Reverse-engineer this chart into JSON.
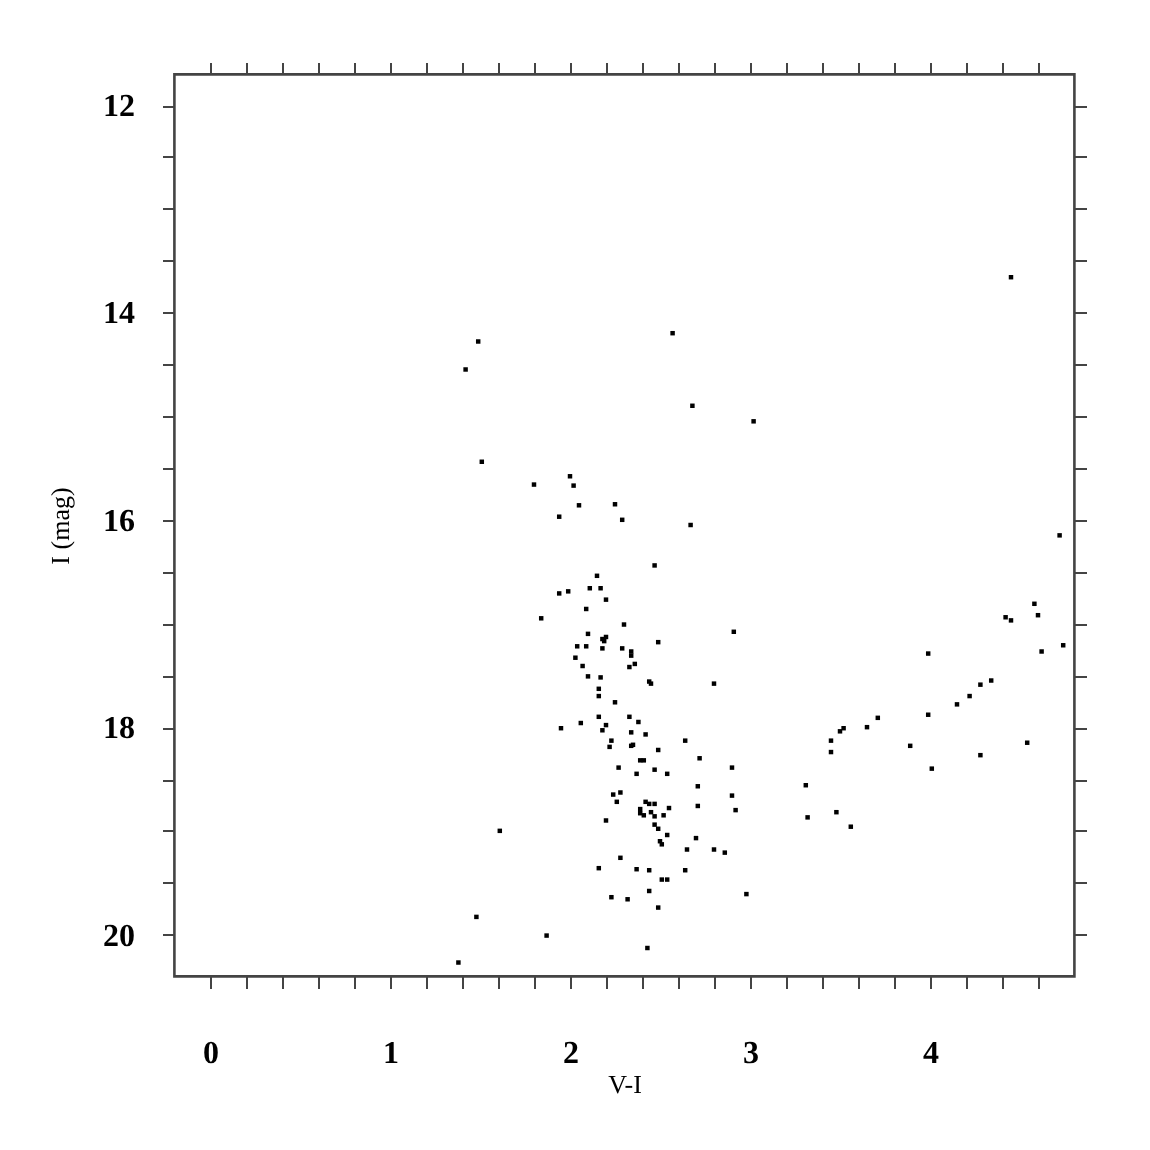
{
  "chart_data": {
    "type": "scatter",
    "xlabel": "V-I",
    "ylabel": "I (mag)",
    "marker": "square",
    "grid": false,
    "xlim": [
      -0.2,
      4.8
    ],
    "ylim": [
      20.4,
      11.7
    ],
    "xticks": [
      0,
      {
        "value": 0.2,
        "label": null
      },
      {
        "value": 0.4,
        "label": null
      },
      {
        "value": 0.6,
        "label": null
      },
      {
        "value": 0.8,
        "label": null
      },
      1,
      {
        "value": 1.2,
        "label": null
      },
      {
        "value": 1.4,
        "label": null
      },
      {
        "value": 1.6,
        "label": null
      },
      {
        "value": 1.8,
        "label": null
      },
      2,
      {
        "value": 2.2,
        "label": null
      },
      {
        "value": 2.4,
        "label": null
      },
      {
        "value": 2.6,
        "label": null
      },
      {
        "value": 2.8,
        "label": null
      },
      3,
      {
        "value": 3.2,
        "label": null
      },
      {
        "value": 3.4,
        "label": null
      },
      {
        "value": 3.6,
        "label": null
      },
      {
        "value": 3.8,
        "label": null
      },
      4,
      {
        "value": 4.2,
        "label": null
      },
      {
        "value": 4.4,
        "label": null
      },
      {
        "value": 4.6,
        "label": null
      }
    ],
    "yticks": [
      12,
      {
        "value": 12.5,
        "label": null
      },
      {
        "value": 13,
        "label": null
      },
      {
        "value": 13.5,
        "label": null
      },
      14,
      {
        "value": 14.5,
        "label": null
      },
      {
        "value": 15,
        "label": null
      },
      {
        "value": 15.5,
        "label": null
      },
      16,
      {
        "value": 16.5,
        "label": null
      },
      {
        "value": 17,
        "label": null
      },
      {
        "value": 17.5,
        "label": null
      },
      18,
      {
        "value": 18.5,
        "label": null
      },
      {
        "value": 19,
        "label": null
      },
      {
        "value": 19.5,
        "label": null
      },
      20
    ],
    "series": [
      {
        "color": "#000000",
        "x": [
          4.45,
          2.57,
          2.68,
          3.02,
          1.8,
          2.0,
          2.02,
          2.05,
          1.94,
          2.25,
          2.29,
          2.67,
          4.72,
          2.47,
          2.15,
          1.94,
          1.99,
          2.11,
          2.17,
          2.2,
          4.58,
          4.6,
          2.09,
          1.84,
          4.42,
          4.45,
          2.3,
          2.1,
          2.91,
          2.18,
          2.2,
          2.19,
          2.49,
          2.04,
          2.09,
          2.18,
          2.29,
          2.34,
          4.62,
          4.74,
          2.03,
          2.34,
          2.07,
          2.36,
          2.33,
          3.99,
          2.1,
          2.17,
          2.44,
          2.45,
          2.8,
          4.34,
          4.28,
          4.22,
          2.16,
          2.16,
          2.25,
          4.15,
          3.71,
          3.65,
          3.52,
          3.5,
          3.99,
          2.16,
          2.33,
          1.95,
          2.06,
          2.38,
          2.2,
          2.18,
          2.42,
          2.34,
          2.64,
          2.23,
          3.45,
          3.45,
          2.22,
          2.35,
          2.34,
          2.49,
          3.89,
          4.54,
          4.28,
          2.41,
          2.39,
          2.72,
          4.01,
          2.27,
          2.47,
          2.54,
          2.37,
          2.9,
          3.31,
          2.71,
          2.24,
          2.28,
          2.9,
          2.26,
          2.42,
          2.44,
          2.47,
          2.39,
          2.45,
          2.55,
          2.39,
          2.71,
          2.41,
          2.47,
          2.52,
          2.92,
          3.48,
          3.32,
          2.2,
          2.47,
          2.49,
          3.56,
          2.54,
          2.5,
          2.51,
          2.7,
          2.65,
          2.8,
          2.86,
          2.28,
          2.16,
          2.37,
          2.44,
          2.64,
          2.51,
          2.54,
          2.44,
          2.98,
          2.23,
          2.32,
          2.49,
          1.87,
          2.43,
          1.49,
          1.42,
          1.51,
          1.61,
          1.48,
          1.38
        ],
        "values": [
          13.66,
          14.2,
          14.9,
          15.05,
          15.66,
          15.58,
          15.67,
          15.86,
          15.97,
          15.85,
          16.0,
          16.05,
          16.15,
          16.44,
          16.54,
          16.71,
          16.69,
          16.66,
          16.66,
          16.77,
          16.81,
          16.92,
          16.86,
          16.95,
          16.94,
          16.97,
          17.01,
          17.1,
          17.08,
          17.15,
          17.13,
          17.17,
          17.18,
          17.22,
          17.22,
          17.24,
          17.24,
          17.27,
          17.27,
          17.21,
          17.33,
          17.31,
          17.41,
          17.39,
          17.42,
          17.29,
          17.51,
          17.52,
          17.56,
          17.58,
          17.58,
          17.55,
          17.59,
          17.7,
          17.63,
          17.7,
          17.76,
          17.78,
          17.91,
          18.0,
          18.01,
          18.04,
          17.88,
          17.9,
          17.9,
          18.01,
          17.96,
          17.95,
          17.98,
          18.03,
          18.07,
          18.05,
          18.13,
          18.13,
          18.13,
          18.24,
          18.19,
          18.17,
          18.18,
          18.22,
          18.18,
          18.15,
          18.27,
          18.32,
          18.32,
          18.3,
          18.4,
          18.39,
          18.41,
          18.45,
          18.45,
          18.39,
          18.56,
          18.57,
          18.65,
          18.63,
          18.66,
          18.72,
          18.72,
          18.74,
          18.74,
          18.79,
          18.82,
          18.78,
          18.83,
          18.76,
          18.85,
          18.86,
          18.85,
          18.8,
          18.82,
          18.87,
          18.9,
          18.94,
          18.98,
          18.96,
          19.04,
          19.1,
          19.13,
          19.07,
          19.18,
          19.18,
          19.21,
          19.26,
          19.36,
          19.37,
          19.38,
          19.38,
          19.47,
          19.47,
          19.58,
          19.61,
          19.64,
          19.66,
          19.74,
          20.01,
          20.13,
          14.28,
          14.55,
          15.44,
          19.0,
          19.83,
          20.27
        ]
      }
    ]
  }
}
